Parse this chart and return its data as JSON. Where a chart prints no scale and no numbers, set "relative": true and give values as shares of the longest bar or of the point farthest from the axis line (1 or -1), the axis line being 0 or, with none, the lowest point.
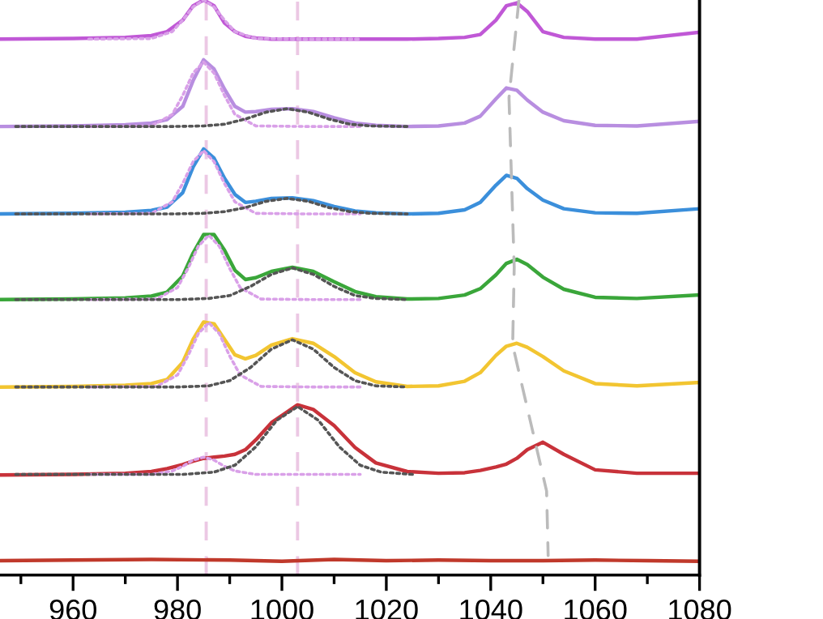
{
  "chart_data": {
    "type": "line",
    "relative": true,
    "tick_labels": "x",
    "grid": false,
    "legend": false,
    "xlim": [
      946,
      1080
    ],
    "xticks": [
      {
        "value": 950,
        "label": null
      },
      960,
      {
        "value": 970,
        "label": null
      },
      980,
      {
        "value": 990,
        "label": null
      },
      1000,
      {
        "value": 1010,
        "label": null
      },
      1020,
      {
        "value": 1030,
        "label": null
      },
      1040,
      {
        "value": 1050,
        "label": null
      },
      1060,
      {
        "value": 1070,
        "label": null
      },
      1080
    ],
    "ref_lines": [
      {
        "axis": "x",
        "value": 985.5,
        "color": "#ecc8e4",
        "line_style": "dashed"
      },
      {
        "axis": "x",
        "value": 1003,
        "color": "#ecc8e4",
        "line_style": "dashed"
      }
    ],
    "series": [
      {
        "color": "#c0392b",
        "line_style": "solid",
        "x": [
          946,
          960,
          975,
          990,
          1000,
          1010,
          1020,
          1030,
          1040,
          1050,
          1060,
          1070,
          1080
        ],
        "values": [
          0.025,
          0.026,
          0.027,
          0.026,
          0.024,
          0.027,
          0.025,
          0.026,
          0.025,
          0.025,
          0.026,
          0.025,
          0.024
        ]
      },
      {
        "color": "#c8323a",
        "line_style": "solid",
        "x": [
          946,
          960,
          970,
          975,
          978,
          981,
          983,
          985,
          987,
          989,
          991,
          993,
          995,
          998,
          1003,
          1006,
          1010,
          1014,
          1018,
          1024,
          1030,
          1035,
          1038,
          1041,
          1043,
          1045,
          1047,
          1050,
          1054,
          1060,
          1068,
          1080
        ],
        "values": [
          0.174,
          0.175,
          0.177,
          0.18,
          0.185,
          0.192,
          0.198,
          0.203,
          0.205,
          0.207,
          0.21,
          0.218,
          0.235,
          0.265,
          0.296,
          0.288,
          0.26,
          0.222,
          0.195,
          0.18,
          0.177,
          0.178,
          0.182,
          0.188,
          0.193,
          0.203,
          0.218,
          0.231,
          0.21,
          0.183,
          0.177,
          0.177
        ]
      },
      {
        "color": "#f2c531",
        "line_style": "solid",
        "x": [
          946,
          960,
          970,
          975,
          978,
          981,
          983,
          985,
          987,
          989,
          991,
          993,
          995,
          998,
          1002,
          1006,
          1010,
          1014,
          1018,
          1024,
          1030,
          1035,
          1038,
          1041,
          1043,
          1045,
          1047,
          1050,
          1054,
          1060,
          1068,
          1080
        ],
        "values": [
          0.327,
          0.328,
          0.33,
          0.333,
          0.34,
          0.37,
          0.41,
          0.44,
          0.437,
          0.41,
          0.383,
          0.376,
          0.382,
          0.4,
          0.411,
          0.403,
          0.38,
          0.352,
          0.336,
          0.328,
          0.329,
          0.337,
          0.352,
          0.382,
          0.398,
          0.403,
          0.396,
          0.38,
          0.355,
          0.333,
          0.329,
          0.335
        ]
      },
      {
        "color": "#3aa63a",
        "line_style": "solid",
        "x": [
          946,
          960,
          970,
          975,
          978,
          981,
          983,
          985,
          987,
          989,
          991,
          993,
          995,
          998,
          1002,
          1006,
          1010,
          1014,
          1018,
          1024,
          1030,
          1035,
          1038,
          1041,
          1043,
          1045,
          1047,
          1050,
          1054,
          1060,
          1068,
          1080
        ],
        "values": [
          0.479,
          0.48,
          0.482,
          0.485,
          0.492,
          0.52,
          0.56,
          0.592,
          0.592,
          0.565,
          0.53,
          0.514,
          0.517,
          0.528,
          0.535,
          0.528,
          0.51,
          0.493,
          0.484,
          0.48,
          0.481,
          0.487,
          0.498,
          0.522,
          0.542,
          0.549,
          0.54,
          0.518,
          0.497,
          0.483,
          0.481,
          0.487
        ]
      },
      {
        "color": "#3b8fdb",
        "line_style": "solid",
        "x": [
          946,
          960,
          970,
          975,
          978,
          981,
          983,
          985,
          987,
          989,
          991,
          993,
          995,
          998,
          1002,
          1006,
          1010,
          1014,
          1018,
          1024,
          1030,
          1035,
          1038,
          1041,
          1043,
          1045,
          1047,
          1050,
          1054,
          1060,
          1068,
          1080
        ],
        "values": [
          0.628,
          0.629,
          0.631,
          0.634,
          0.64,
          0.665,
          0.71,
          0.741,
          0.725,
          0.69,
          0.662,
          0.648,
          0.65,
          0.655,
          0.656,
          0.651,
          0.641,
          0.633,
          0.63,
          0.628,
          0.629,
          0.635,
          0.648,
          0.678,
          0.695,
          0.69,
          0.672,
          0.652,
          0.637,
          0.63,
          0.629,
          0.637
        ]
      },
      {
        "color": "#b88ee0",
        "line_style": "solid",
        "x": [
          946,
          960,
          970,
          975,
          978,
          981,
          983,
          985,
          987,
          989,
          991,
          993,
          995,
          998,
          1002,
          1006,
          1010,
          1014,
          1018,
          1024,
          1030,
          1035,
          1038,
          1041,
          1043,
          1045,
          1047,
          1050,
          1054,
          1060,
          1068,
          1080
        ],
        "values": [
          0.78,
          0.781,
          0.783,
          0.786,
          0.792,
          0.815,
          0.86,
          0.896,
          0.88,
          0.845,
          0.815,
          0.805,
          0.806,
          0.81,
          0.811,
          0.806,
          0.795,
          0.786,
          0.782,
          0.78,
          0.781,
          0.786,
          0.798,
          0.828,
          0.847,
          0.843,
          0.826,
          0.805,
          0.79,
          0.782,
          0.781,
          0.789
        ]
      },
      {
        "color": "#c058d6",
        "line_style": "solid",
        "x": [
          946,
          960,
          970,
          975,
          978,
          981,
          983,
          985,
          987,
          989,
          991,
          993,
          995,
          998,
          1002,
          1006,
          1010,
          1014,
          1018,
          1024,
          1030,
          1035,
          1038,
          1041,
          1043,
          1045,
          1047,
          1050,
          1054,
          1060,
          1068,
          1080
        ],
        "values": [
          0.932,
          0.933,
          0.935,
          0.938,
          0.945,
          0.965,
          0.99,
          1.0,
          0.99,
          0.96,
          0.945,
          0.937,
          0.934,
          0.932,
          0.932,
          0.932,
          0.932,
          0.932,
          0.932,
          0.932,
          0.933,
          0.935,
          0.94,
          0.965,
          0.99,
          0.995,
          0.98,
          0.945,
          0.935,
          0.932,
          0.932,
          0.944
        ]
      },
      {
        "color": "#d9a0e8",
        "line_style": "dotted",
        "x": [
          963,
          975,
          979,
          981,
          983,
          985,
          987,
          989,
          991,
          995,
          1005,
          1015
        ],
        "values": [
          0.175,
          0.175,
          0.181,
          0.189,
          0.2,
          0.205,
          0.2,
          0.189,
          0.181,
          0.175,
          0.175,
          0.175
        ]
      },
      {
        "color": "#555555",
        "line_style": "dotted",
        "x": [
          949,
          981,
          987,
          991,
          995,
          999,
          1003,
          1007,
          1011,
          1015,
          1019,
          1025
        ],
        "values": [
          0.175,
          0.175,
          0.179,
          0.191,
          0.223,
          0.269,
          0.293,
          0.269,
          0.223,
          0.191,
          0.179,
          0.175
        ]
      },
      {
        "color": "#d9a0e8",
        "line_style": "dotted",
        "x": [
          963,
          976,
          980,
          982,
          984,
          986,
          988,
          990,
          992,
          996,
          1006,
          1015
        ],
        "values": [
          0.327,
          0.328,
          0.348,
          0.381,
          0.42,
          0.439,
          0.42,
          0.381,
          0.348,
          0.328,
          0.327,
          0.327
        ]
      },
      {
        "color": "#555555",
        "line_style": "dotted",
        "x": [
          949,
          980,
          986,
          990,
          994,
          998,
          1002,
          1006,
          1010,
          1014,
          1018,
          1024
        ],
        "values": [
          0.327,
          0.327,
          0.329,
          0.338,
          0.361,
          0.393,
          0.409,
          0.393,
          0.361,
          0.338,
          0.329,
          0.327
        ]
      },
      {
        "color": "#d9a0e8",
        "line_style": "dotted",
        "x": [
          963,
          976,
          980,
          982,
          984,
          986,
          988,
          990,
          992,
          996,
          1006,
          1015
        ],
        "values": [
          0.479,
          0.48,
          0.5,
          0.533,
          0.572,
          0.591,
          0.572,
          0.533,
          0.5,
          0.48,
          0.479,
          0.479
        ]
      },
      {
        "color": "#555555",
        "line_style": "dotted",
        "x": [
          949,
          980,
          986,
          990,
          994,
          998,
          1002,
          1006,
          1010,
          1014,
          1018,
          1024
        ],
        "values": [
          0.479,
          0.479,
          0.481,
          0.486,
          0.502,
          0.523,
          0.534,
          0.523,
          0.502,
          0.486,
          0.481,
          0.479
        ]
      },
      {
        "color": "#d9a0e8",
        "line_style": "dotted",
        "x": [
          963,
          975,
          979,
          981,
          983,
          985,
          987,
          989,
          991,
          995,
          1005,
          1015
        ],
        "values": [
          0.628,
          0.629,
          0.649,
          0.681,
          0.719,
          0.738,
          0.719,
          0.681,
          0.649,
          0.629,
          0.628,
          0.628
        ]
      },
      {
        "color": "#555555",
        "line_style": "dotted",
        "x": [
          949,
          979,
          985,
          989,
          993,
          997,
          1001,
          1005,
          1009,
          1013,
          1017,
          1024
        ],
        "values": [
          0.628,
          0.628,
          0.629,
          0.632,
          0.639,
          0.65,
          0.655,
          0.65,
          0.639,
          0.632,
          0.629,
          0.628
        ]
      },
      {
        "color": "#d9a0e8",
        "line_style": "dotted",
        "x": [
          963,
          975,
          979,
          981,
          983,
          985,
          987,
          989,
          991,
          995,
          1005,
          1015
        ],
        "values": [
          0.78,
          0.781,
          0.801,
          0.834,
          0.873,
          0.892,
          0.873,
          0.834,
          0.801,
          0.781,
          0.78,
          0.78
        ]
      },
      {
        "color": "#555555",
        "line_style": "dotted",
        "x": [
          949,
          979,
          985,
          989,
          993,
          997,
          1001,
          1005,
          1009,
          1013,
          1017,
          1024
        ],
        "values": [
          0.78,
          0.78,
          0.781,
          0.784,
          0.793,
          0.805,
          0.811,
          0.805,
          0.793,
          0.784,
          0.781,
          0.78
        ]
      },
      {
        "color": "#d9a0e8",
        "line_style": "dotted",
        "x": [
          963,
          975,
          979,
          981,
          983,
          985,
          987,
          989,
          991,
          995,
          1005,
          1015
        ],
        "values": [
          0.932,
          0.933,
          0.945,
          0.965,
          0.988,
          1.0,
          0.988,
          0.965,
          0.945,
          0.933,
          0.932,
          0.932
        ]
      },
      {
        "color": "#bbbbbb",
        "line_style": "dashed",
        "x": [
          1045.4,
          1043.5,
          1044.5,
          1044.2,
          1050.7,
          1051
        ],
        "values": [
          1.0,
          0.83,
          0.535,
          0.4,
          0.146,
          0.034
        ]
      }
    ]
  }
}
